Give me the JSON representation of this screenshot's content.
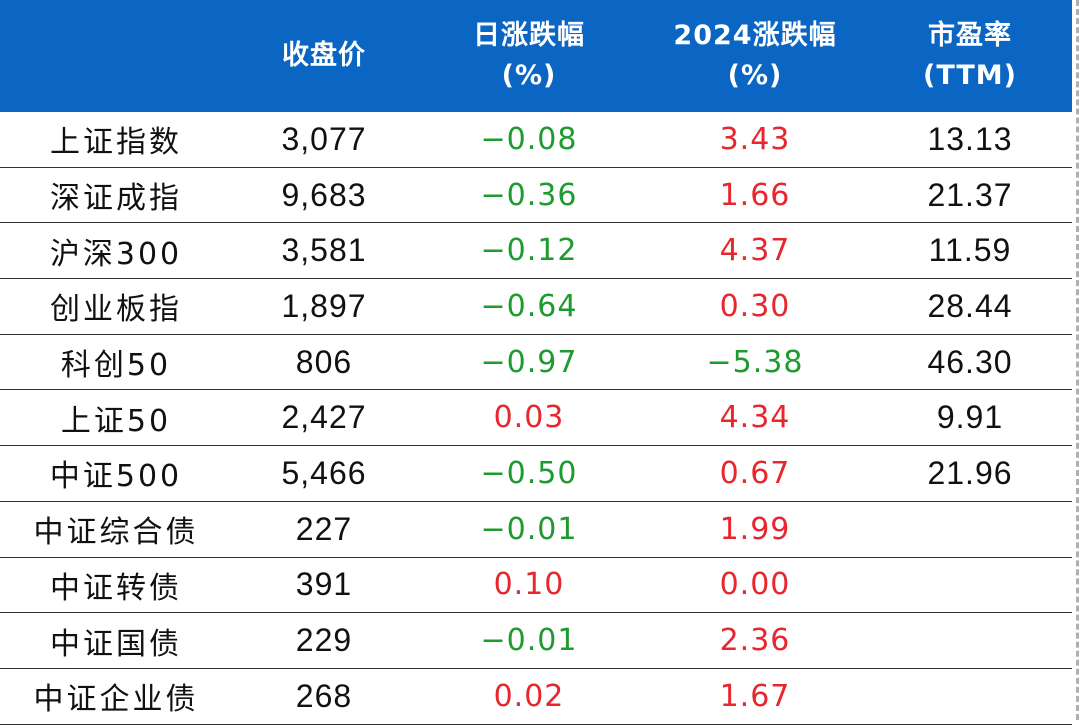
{
  "headers": {
    "name": "",
    "close": "收盘价",
    "daily_line1": "日涨跌幅",
    "daily_line2": "(%)",
    "ytd_line1": "2024涨跌幅",
    "ytd_line2": "(%)",
    "pe_line1": "市盈率",
    "pe_line2": "(TTM)"
  },
  "colors": {
    "header_bg": "#0a66c2",
    "up": "#e8262d",
    "down": "#1e9b2e"
  },
  "rows": [
    {
      "name": "上证指数",
      "close": "3,077",
      "daily": "-0.08",
      "ytd": "3.43",
      "pe": "13.13"
    },
    {
      "name": "深证成指",
      "close": "9,683",
      "daily": "-0.36",
      "ytd": "1.66",
      "pe": "21.37"
    },
    {
      "name": "沪深300",
      "close": "3,581",
      "daily": "-0.12",
      "ytd": "4.37",
      "pe": "11.59"
    },
    {
      "name": "创业板指",
      "close": "1,897",
      "daily": "-0.64",
      "ytd": "0.30",
      "pe": "28.44"
    },
    {
      "name": "科创50",
      "close": "806",
      "daily": "-0.97",
      "ytd": "-5.38",
      "pe": "46.30"
    },
    {
      "name": "上证50",
      "close": "2,427",
      "daily": "0.03",
      "ytd": "4.34",
      "pe": "9.91"
    },
    {
      "name": "中证500",
      "close": "5,466",
      "daily": "-0.50",
      "ytd": "0.67",
      "pe": "21.96"
    },
    {
      "name": "中证综合债",
      "close": "227",
      "daily": "-0.01",
      "ytd": "1.99",
      "pe": ""
    },
    {
      "name": "中证转债",
      "close": "391",
      "daily": "0.10",
      "ytd": "0.00",
      "pe": ""
    },
    {
      "name": "中证国债",
      "close": "229",
      "daily": "-0.01",
      "ytd": "2.36",
      "pe": ""
    },
    {
      "name": "中证企业债",
      "close": "268",
      "daily": "0.02",
      "ytd": "1.67",
      "pe": ""
    }
  ]
}
